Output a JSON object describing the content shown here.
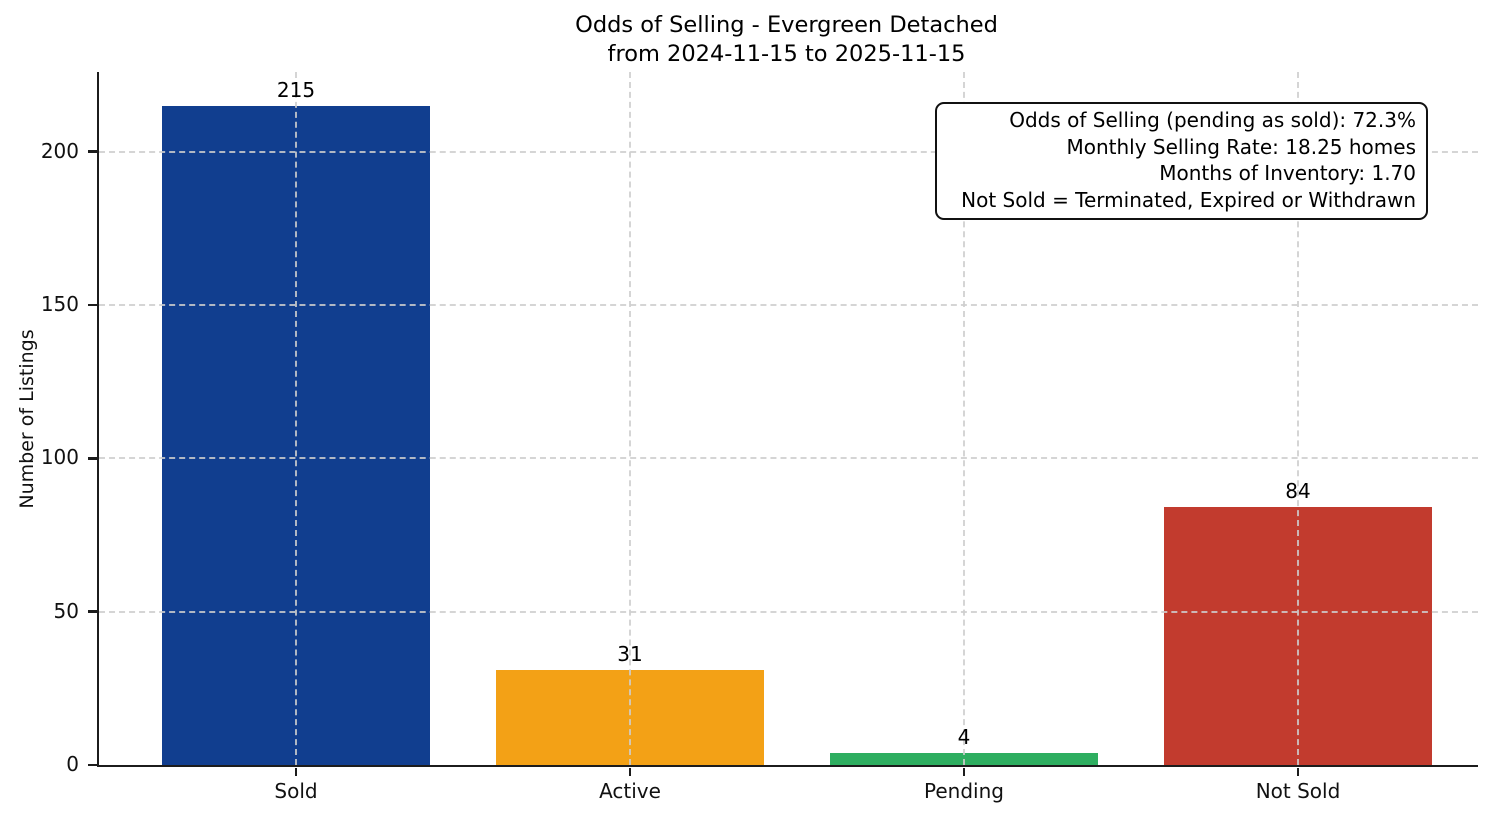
{
  "chart_data": {
    "type": "bar",
    "title": "Odds of Selling - Evergreen Detached\nfrom 2024-11-15 to 2025-11-15",
    "title_lines": [
      "Odds of Selling - Evergreen Detached",
      "from 2024-11-15 to 2025-11-15"
    ],
    "categories": [
      "Sold",
      "Active",
      "Pending",
      "Not Sold"
    ],
    "values": [
      215,
      31,
      4,
      84
    ],
    "bar_colors": [
      "#113e8f",
      "#f3a116",
      "#2eae60",
      "#c23b2e"
    ],
    "value_labels": [
      215,
      31,
      4,
      84
    ],
    "xlabel": "",
    "ylabel": "Number of Listings",
    "ylim": [
      0,
      226
    ],
    "yticks": [
      0,
      50,
      100,
      150,
      200
    ],
    "grid": {
      "style": "dashed",
      "axes": "both",
      "color": "#cecece",
      "drawn_over_bars": true
    },
    "legend": "none",
    "stats_box": {
      "position": "top-right",
      "border_color": "#111111",
      "background": "#ffffff",
      "lines": [
        "Odds of Selling (pending as sold): 72.3%",
        "Monthly Selling Rate: 18.25 homes",
        "Months of Inventory: 1.70",
        "Not Sold = Terminated, Expired or Withdrawn"
      ]
    }
  }
}
